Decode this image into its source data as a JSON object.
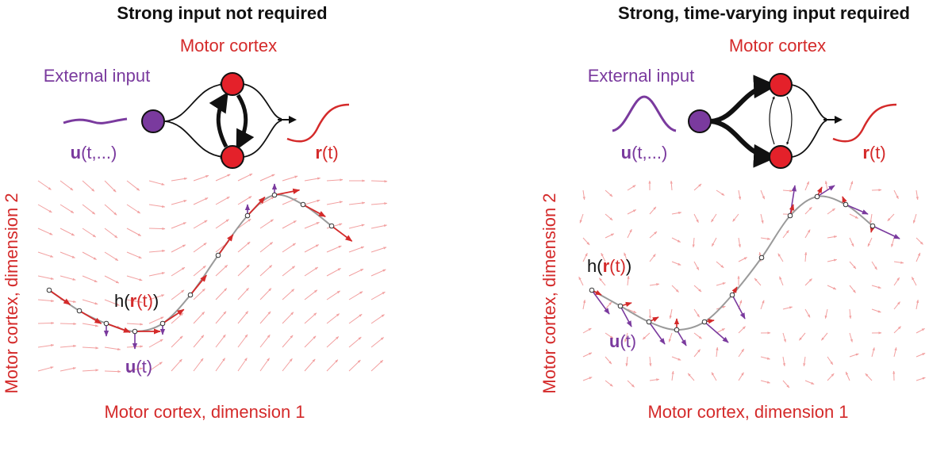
{
  "colors": {
    "red": "#d42a2a",
    "purple": "#7a3a9e",
    "node_red": "#e4212a",
    "node_purple": "#7a3a9e",
    "field_arrow": "#f2a0a0",
    "trajectory": "#9a9a9a",
    "text": "#111111"
  },
  "left_panel": {
    "title": "Strong input not required",
    "network_label": "Motor cortex",
    "input_label": "External input",
    "input_signal_bold": "u",
    "input_signal_rest": "(t,...)",
    "output_bold": "r",
    "output_rest": "(t)",
    "traj_label_h": "h(",
    "traj_label_r": "r",
    "traj_label_t": "(t)",
    "traj_label_close": ")",
    "u_label_bold": "u",
    "u_label_rest": "(t)",
    "xlabel": "Motor cortex, dimension 1",
    "ylabel": "Motor cortex, dimension 2"
  },
  "right_panel": {
    "title": "Strong, time-varying input required",
    "network_label": "Motor cortex",
    "input_label": "External input",
    "input_signal_bold": "u",
    "input_signal_rest": "(t,...)",
    "output_bold": "r",
    "output_rest": "(t)",
    "traj_label_h": "h(",
    "traj_label_r": "r",
    "traj_label_t": "(t)",
    "traj_label_close": ")",
    "u_label_bold": "u",
    "u_label_rest": "(t)",
    "xlabel": "Motor cortex, dimension 1",
    "ylabel": "Motor cortex, dimension 2"
  }
}
